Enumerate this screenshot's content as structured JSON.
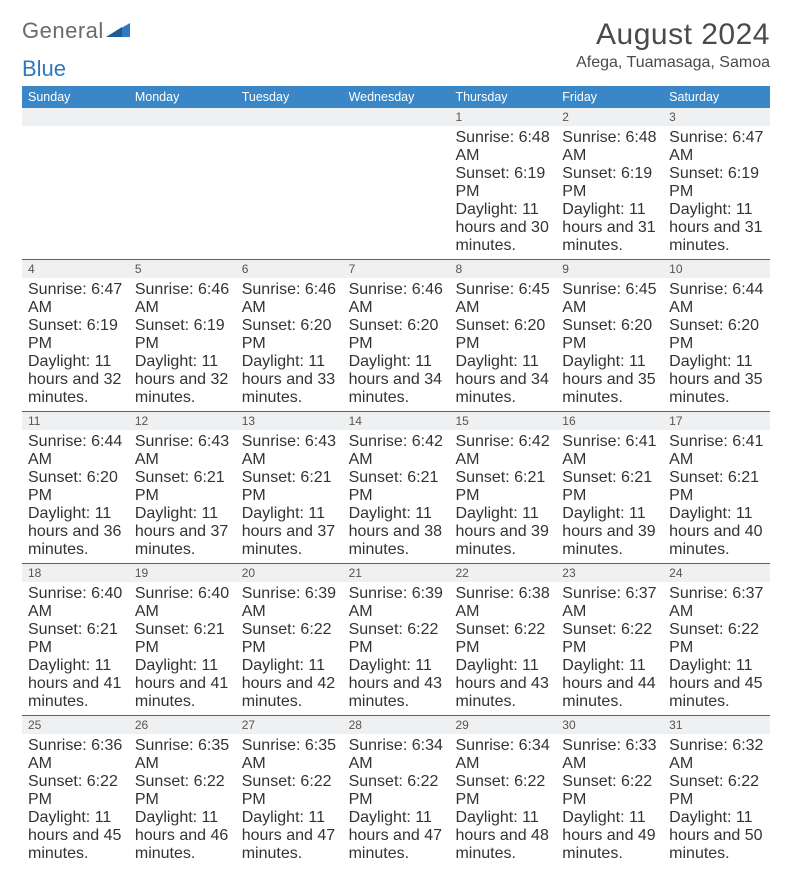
{
  "logo": {
    "general": "General",
    "blue": "Blue",
    "tri_color": "#2f7abf"
  },
  "title": "August 2024",
  "location": "Afega, Tuamasaga, Samoa",
  "colors": {
    "header_bg": "#3a87c8",
    "header_text": "#ffffff",
    "week_border": "#2f6ea6",
    "daynum_bg": "#eef0f2",
    "text": "#3a3a3a"
  },
  "dow": [
    "Sunday",
    "Monday",
    "Tuesday",
    "Wednesday",
    "Thursday",
    "Friday",
    "Saturday"
  ],
  "weeks": [
    [
      null,
      null,
      null,
      null,
      {
        "n": "1",
        "sr": "6:48 AM",
        "ss": "6:19 PM",
        "dl": "11 hours and 30 minutes."
      },
      {
        "n": "2",
        "sr": "6:48 AM",
        "ss": "6:19 PM",
        "dl": "11 hours and 31 minutes."
      },
      {
        "n": "3",
        "sr": "6:47 AM",
        "ss": "6:19 PM",
        "dl": "11 hours and 31 minutes."
      }
    ],
    [
      {
        "n": "4",
        "sr": "6:47 AM",
        "ss": "6:19 PM",
        "dl": "11 hours and 32 minutes."
      },
      {
        "n": "5",
        "sr": "6:46 AM",
        "ss": "6:19 PM",
        "dl": "11 hours and 32 minutes."
      },
      {
        "n": "6",
        "sr": "6:46 AM",
        "ss": "6:20 PM",
        "dl": "11 hours and 33 minutes."
      },
      {
        "n": "7",
        "sr": "6:46 AM",
        "ss": "6:20 PM",
        "dl": "11 hours and 34 minutes."
      },
      {
        "n": "8",
        "sr": "6:45 AM",
        "ss": "6:20 PM",
        "dl": "11 hours and 34 minutes."
      },
      {
        "n": "9",
        "sr": "6:45 AM",
        "ss": "6:20 PM",
        "dl": "11 hours and 35 minutes."
      },
      {
        "n": "10",
        "sr": "6:44 AM",
        "ss": "6:20 PM",
        "dl": "11 hours and 35 minutes."
      }
    ],
    [
      {
        "n": "11",
        "sr": "6:44 AM",
        "ss": "6:20 PM",
        "dl": "11 hours and 36 minutes."
      },
      {
        "n": "12",
        "sr": "6:43 AM",
        "ss": "6:21 PM",
        "dl": "11 hours and 37 minutes."
      },
      {
        "n": "13",
        "sr": "6:43 AM",
        "ss": "6:21 PM",
        "dl": "11 hours and 37 minutes."
      },
      {
        "n": "14",
        "sr": "6:42 AM",
        "ss": "6:21 PM",
        "dl": "11 hours and 38 minutes."
      },
      {
        "n": "15",
        "sr": "6:42 AM",
        "ss": "6:21 PM",
        "dl": "11 hours and 39 minutes."
      },
      {
        "n": "16",
        "sr": "6:41 AM",
        "ss": "6:21 PM",
        "dl": "11 hours and 39 minutes."
      },
      {
        "n": "17",
        "sr": "6:41 AM",
        "ss": "6:21 PM",
        "dl": "11 hours and 40 minutes."
      }
    ],
    [
      {
        "n": "18",
        "sr": "6:40 AM",
        "ss": "6:21 PM",
        "dl": "11 hours and 41 minutes."
      },
      {
        "n": "19",
        "sr": "6:40 AM",
        "ss": "6:21 PM",
        "dl": "11 hours and 41 minutes."
      },
      {
        "n": "20",
        "sr": "6:39 AM",
        "ss": "6:22 PM",
        "dl": "11 hours and 42 minutes."
      },
      {
        "n": "21",
        "sr": "6:39 AM",
        "ss": "6:22 PM",
        "dl": "11 hours and 43 minutes."
      },
      {
        "n": "22",
        "sr": "6:38 AM",
        "ss": "6:22 PM",
        "dl": "11 hours and 43 minutes."
      },
      {
        "n": "23",
        "sr": "6:37 AM",
        "ss": "6:22 PM",
        "dl": "11 hours and 44 minutes."
      },
      {
        "n": "24",
        "sr": "6:37 AM",
        "ss": "6:22 PM",
        "dl": "11 hours and 45 minutes."
      }
    ],
    [
      {
        "n": "25",
        "sr": "6:36 AM",
        "ss": "6:22 PM",
        "dl": "11 hours and 45 minutes."
      },
      {
        "n": "26",
        "sr": "6:35 AM",
        "ss": "6:22 PM",
        "dl": "11 hours and 46 minutes."
      },
      {
        "n": "27",
        "sr": "6:35 AM",
        "ss": "6:22 PM",
        "dl": "11 hours and 47 minutes."
      },
      {
        "n": "28",
        "sr": "6:34 AM",
        "ss": "6:22 PM",
        "dl": "11 hours and 47 minutes."
      },
      {
        "n": "29",
        "sr": "6:34 AM",
        "ss": "6:22 PM",
        "dl": "11 hours and 48 minutes."
      },
      {
        "n": "30",
        "sr": "6:33 AM",
        "ss": "6:22 PM",
        "dl": "11 hours and 49 minutes."
      },
      {
        "n": "31",
        "sr": "6:32 AM",
        "ss": "6:22 PM",
        "dl": "11 hours and 50 minutes."
      }
    ]
  ],
  "labels": {
    "sunrise": "Sunrise:",
    "sunset": "Sunset:",
    "daylight": "Daylight:"
  }
}
